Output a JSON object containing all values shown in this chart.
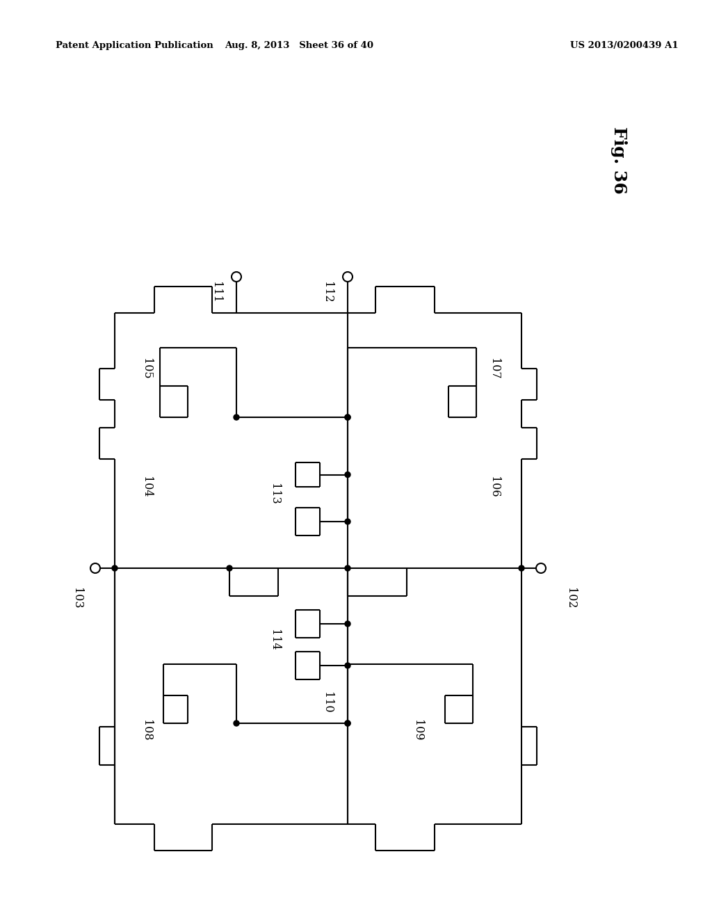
{
  "title_left": "Patent Application Publication",
  "title_mid": "Aug. 8, 2013   Sheet 36 of 40",
  "title_right": "US 2013/0200439 A1",
  "fig_label": "Fig. 36",
  "background": "#ffffff",
  "line_color": "#000000",
  "lw": 1.5
}
